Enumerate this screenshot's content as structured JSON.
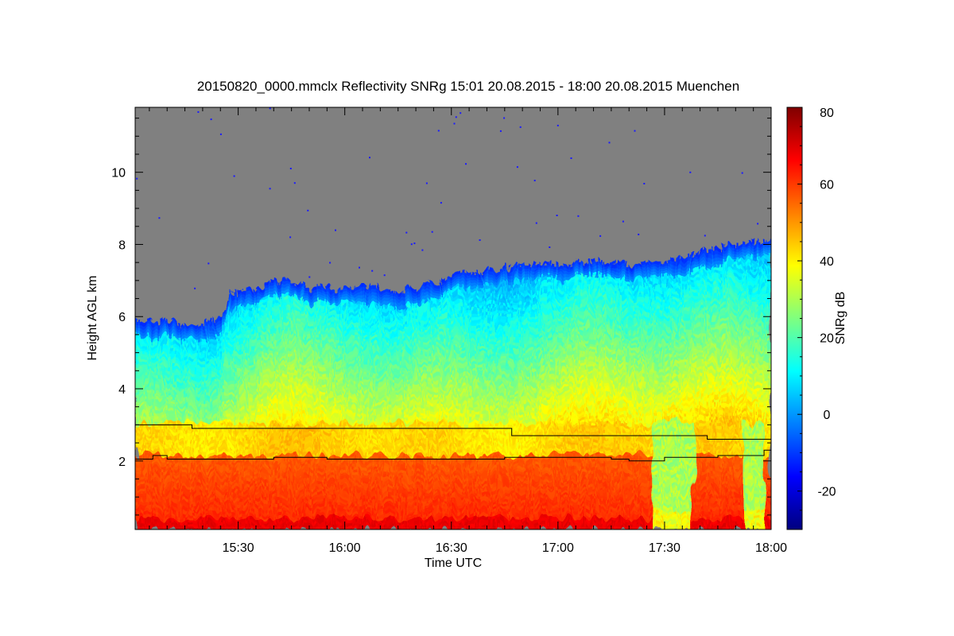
{
  "chart_data": {
    "type": "heatmap",
    "title": "20150820_0000.mmclx Reflectivity SNRg   15:01 20.08.2015 - 18:00 20.08.2015 Muenchen",
    "xlabel": "Time UTC",
    "ylabel": "Height AGL km",
    "colorbar_label": "SNRg dB",
    "x_unit": "minutes UTC",
    "xlim": [
      901,
      1080
    ],
    "ylim": [
      0.1,
      11.8
    ],
    "zlim": [
      -30,
      80
    ],
    "x_ticks": [
      {
        "value": 930,
        "label": "15:30"
      },
      {
        "value": 960,
        "label": "16:00"
      },
      {
        "value": 990,
        "label": "16:30"
      },
      {
        "value": 1020,
        "label": "17:00"
      },
      {
        "value": 1050,
        "label": "17:30"
      },
      {
        "value": 1080,
        "label": "18:00"
      }
    ],
    "y_ticks": [
      {
        "value": 2,
        "label": "2"
      },
      {
        "value": 4,
        "label": "4"
      },
      {
        "value": 6,
        "label": "6"
      },
      {
        "value": 8,
        "label": "8"
      },
      {
        "value": 10,
        "label": "10"
      }
    ],
    "colorbar_ticks": [
      {
        "value": -20,
        "label": "-20"
      },
      {
        "value": 0,
        "label": "0"
      },
      {
        "value": 20,
        "label": "20"
      },
      {
        "value": 40,
        "label": "40"
      },
      {
        "value": 60,
        "label": "60"
      },
      {
        "value": 80,
        "label": "80"
      }
    ],
    "colormap": [
      "#00007f",
      "#0000ff",
      "#007fff",
      "#00ffff",
      "#7fff7f",
      "#ffff00",
      "#ff7f00",
      "#ff0000",
      "#7f0000"
    ],
    "no_signal_color": "#808080",
    "cloud_top_km": {
      "time": [
        901,
        906,
        911,
        915,
        920,
        925,
        927,
        933,
        938,
        945,
        950,
        955,
        963,
        968,
        975,
        983,
        990,
        997,
        1003,
        1010,
        1020,
        1030,
        1040,
        1050,
        1060,
        1070,
        1080
      ],
      "height": [
        5.9,
        5.8,
        5.8,
        5.7,
        5.7,
        6.0,
        6.6,
        6.7,
        6.9,
        7.0,
        6.8,
        6.8,
        6.8,
        6.7,
        6.6,
        6.8,
        7.1,
        7.2,
        7.3,
        7.4,
        7.4,
        7.5,
        7.4,
        7.5,
        7.7,
        8.0,
        8.1
      ]
    },
    "series": [
      {
        "name": "upper boundary",
        "color": "#000000",
        "time": [
          901,
          916,
          917,
          1006,
          1007,
          1061,
          1062,
          1080
        ],
        "height": [
          3.0,
          3.0,
          2.9,
          2.9,
          2.7,
          2.7,
          2.6,
          2.6
        ]
      },
      {
        "name": "lower boundary",
        "color": "#000000",
        "time": [
          901,
          904,
          906,
          910,
          920,
          930,
          935,
          940,
          950,
          955,
          965,
          975,
          985,
          995,
          1005,
          1015,
          1025,
          1035,
          1040,
          1045,
          1050,
          1055,
          1065,
          1075,
          1078,
          1080
        ],
        "height": [
          2.05,
          2.05,
          2.15,
          2.05,
          2.05,
          2.05,
          2.05,
          2.1,
          2.1,
          2.05,
          2.05,
          2.05,
          2.05,
          2.05,
          2.1,
          2.1,
          2.1,
          2.05,
          2.0,
          2.0,
          2.1,
          2.1,
          2.15,
          2.15,
          2.3,
          2.3
        ]
      }
    ]
  }
}
